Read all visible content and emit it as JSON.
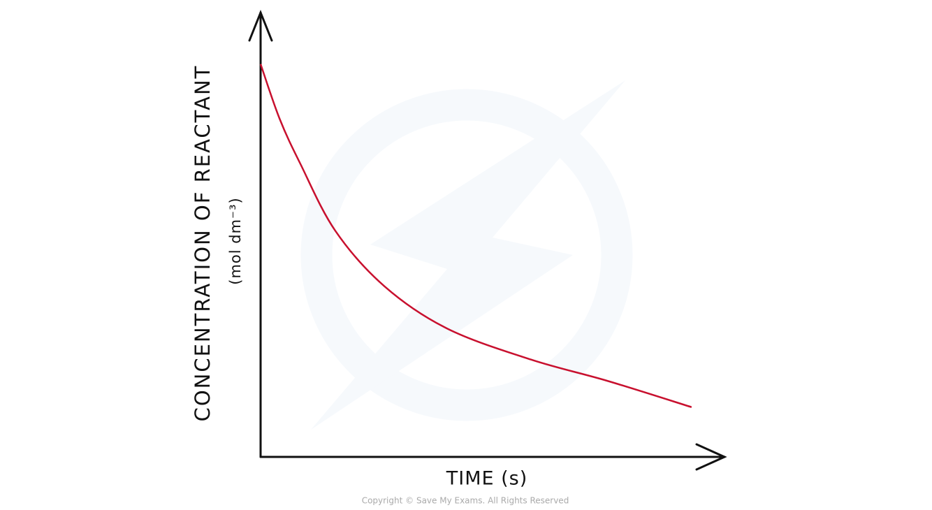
{
  "chart_data": {
    "type": "line",
    "y_label": "CONCENTRATION OF REACTANT",
    "y_units": "(mol dm⁻³)",
    "x_label": "TIME (s)",
    "copyright": "Copyright © Save My Exams. All Rights Reserved",
    "xlim": [
      0,
      100
    ],
    "ylim": [
      0,
      100
    ],
    "x": [
      0,
      4.1,
      8.6,
      16.1,
      26.7,
      40.2,
      58.3,
      74.8,
      92.9
    ],
    "series": [
      {
        "color": "#c8102e",
        "values": [
          88.4,
          76.1,
          65.9,
          50.9,
          38.4,
          28.9,
          21.9,
          17.1,
          11.2
        ]
      }
    ]
  }
}
